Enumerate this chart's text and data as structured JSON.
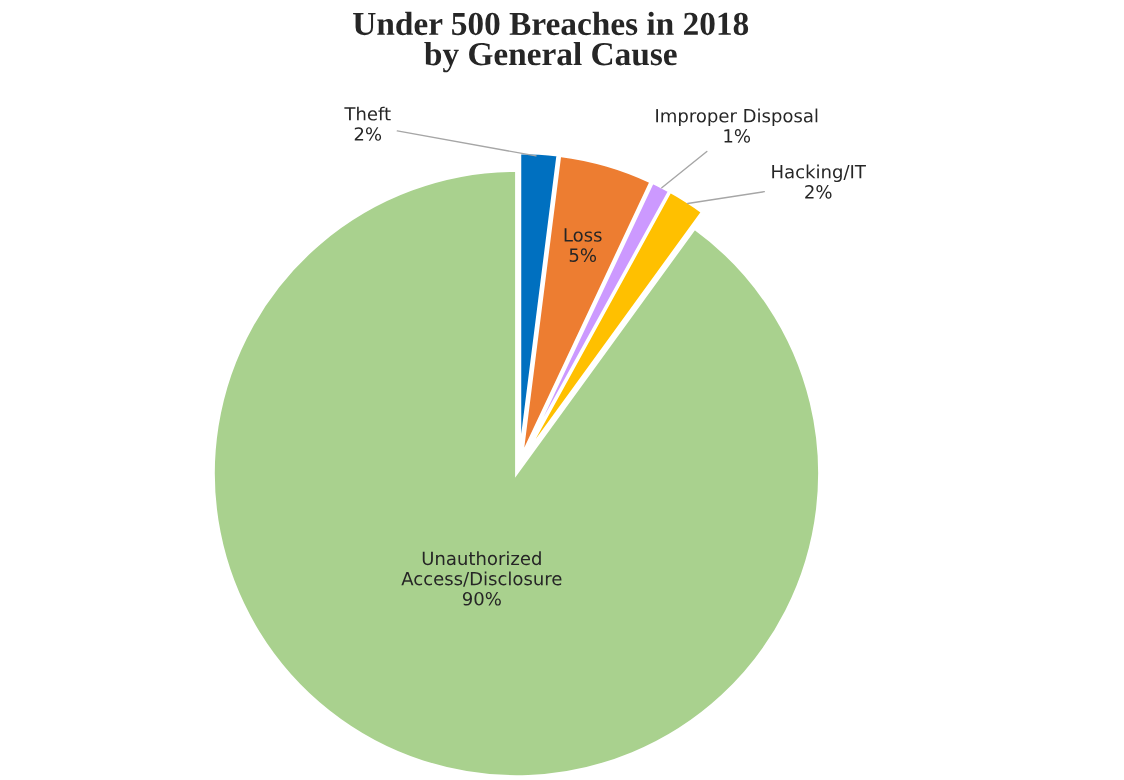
{
  "chart_data": {
    "type": "pie",
    "title": "Under 500 Breaches in 2018\nby General Cause",
    "categories": [
      "Theft",
      "Loss",
      "Improper Disposal",
      "Hacking/IT",
      "Unauthorized\nAccess/Disclosure"
    ],
    "values": [
      2,
      5,
      1,
      2,
      90
    ],
    "value_labels": [
      "2%",
      "5%",
      "1%",
      "2%",
      "90%"
    ],
    "colors": [
      "#0070c0",
      "#ed7d31",
      "#cc99ff",
      "#ffc000",
      "#a9d18e"
    ],
    "legend": false
  }
}
